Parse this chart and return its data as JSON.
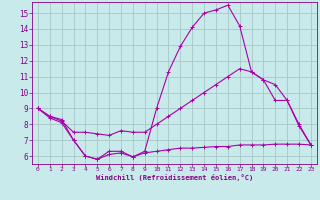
{
  "xlabel": "Windchill (Refroidissement éolien,°C)",
  "xlim": [
    -0.5,
    23.5
  ],
  "ylim": [
    5.5,
    15.7
  ],
  "yticks": [
    6,
    7,
    8,
    9,
    10,
    11,
    12,
    13,
    14,
    15
  ],
  "xticks": [
    0,
    1,
    2,
    3,
    4,
    5,
    6,
    7,
    8,
    9,
    10,
    11,
    12,
    13,
    14,
    15,
    16,
    17,
    18,
    19,
    20,
    21,
    22,
    23
  ],
  "bg_color": "#c8eaea",
  "grid_color": "#a8c8c8",
  "line_color": "#aa00aa",
  "line1_x": [
    0,
    1,
    2,
    3,
    4,
    5,
    6,
    7,
    8,
    9,
    10,
    11,
    12,
    13,
    14,
    15,
    16,
    17,
    18,
    19,
    20,
    21,
    22,
    23
  ],
  "line1_y": [
    9.0,
    8.5,
    8.3,
    7.0,
    6.0,
    5.8,
    6.3,
    6.3,
    5.95,
    6.3,
    9.0,
    11.3,
    12.9,
    14.1,
    15.0,
    15.2,
    15.5,
    14.2,
    11.3,
    10.8,
    9.5,
    9.5,
    7.9,
    6.7
  ],
  "line2_x": [
    0,
    1,
    2,
    3,
    4,
    5,
    6,
    7,
    8,
    9,
    10,
    11,
    12,
    13,
    14,
    15,
    16,
    17,
    18,
    19,
    20,
    21,
    22,
    23
  ],
  "line2_y": [
    9.0,
    8.5,
    8.2,
    7.5,
    7.5,
    7.4,
    7.3,
    7.6,
    7.5,
    7.5,
    8.0,
    8.5,
    9.0,
    9.5,
    10.0,
    10.5,
    11.0,
    11.5,
    11.3,
    10.8,
    10.5,
    9.5,
    8.0,
    6.7
  ],
  "line3_x": [
    0,
    1,
    2,
    3,
    4,
    5,
    6,
    7,
    8,
    9,
    10,
    11,
    12,
    13,
    14,
    15,
    16,
    17,
    18,
    19,
    20,
    21,
    22,
    23
  ],
  "line3_y": [
    9.0,
    8.4,
    8.1,
    7.0,
    6.0,
    5.8,
    6.1,
    6.2,
    5.95,
    6.2,
    6.3,
    6.4,
    6.5,
    6.5,
    6.55,
    6.6,
    6.6,
    6.7,
    6.7,
    6.7,
    6.75,
    6.75,
    6.75,
    6.7
  ]
}
